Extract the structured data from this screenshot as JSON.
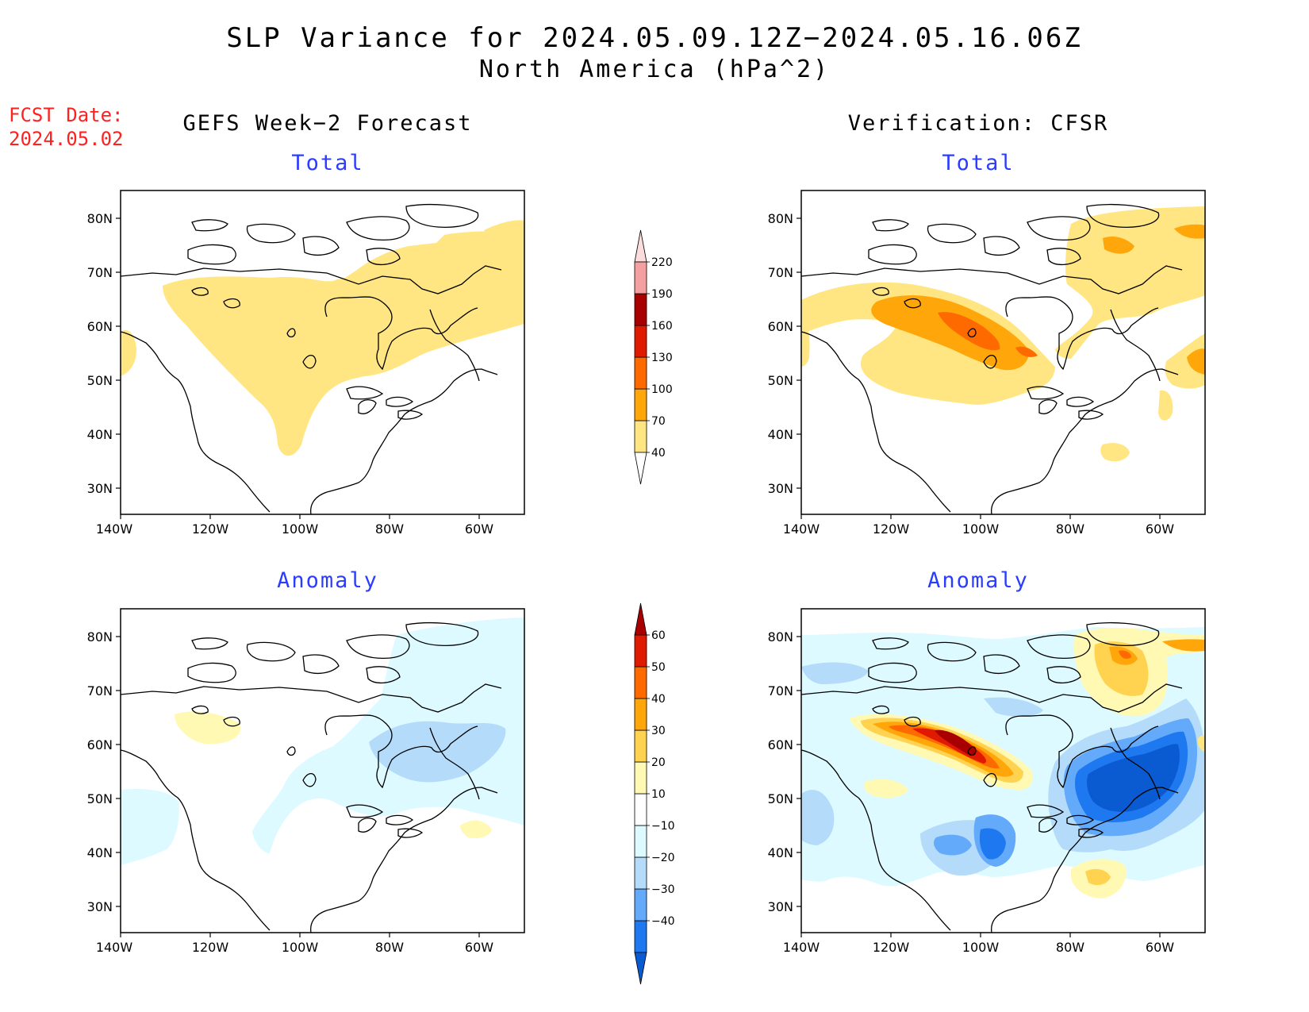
{
  "title": {
    "line1": "SLP Variance for 2024.05.09.12Z−2024.05.16.06Z",
    "line2": "North America (hPa^2)"
  },
  "fcst_date": {
    "label": "FCST Date:",
    "value": "2024.05.02"
  },
  "columns": {
    "left": "GEFS Week−2 Forecast",
    "right": "Verification: CFSR"
  },
  "panel_titles": {
    "total_left": "Total",
    "total_right": "Total",
    "anomaly_left": "Anomaly",
    "anomaly_right": "Anomaly"
  },
  "axes": {
    "lon_ticks": [
      "140W",
      "120W",
      "100W",
      "80W",
      "60W"
    ],
    "lat_ticks": [
      "80N",
      "70N",
      "60N",
      "50N",
      "40N",
      "30N"
    ]
  },
  "colorbar_total": {
    "labels": [
      "40",
      "70",
      "100",
      "130",
      "160",
      "190",
      "220"
    ],
    "colors": [
      "#ffe682",
      "#ffa60a",
      "#ff6a00",
      "#e01a00",
      "#a80000",
      "#f5a0a0",
      "#fcdcdc"
    ]
  },
  "colorbar_anomaly": {
    "labels": [
      "−40",
      "−30",
      "−20",
      "−10",
      "10",
      "20",
      "30",
      "40",
      "50",
      "60"
    ],
    "colors": [
      "#0a5ad2",
      "#1e78f0",
      "#64aafa",
      "#b4dcfa",
      "#dcfaff",
      "#ffffff",
      "#fff9b4",
      "#ffd250",
      "#ffa60a",
      "#ff6a00",
      "#e01a00",
      "#a80000"
    ]
  }
}
